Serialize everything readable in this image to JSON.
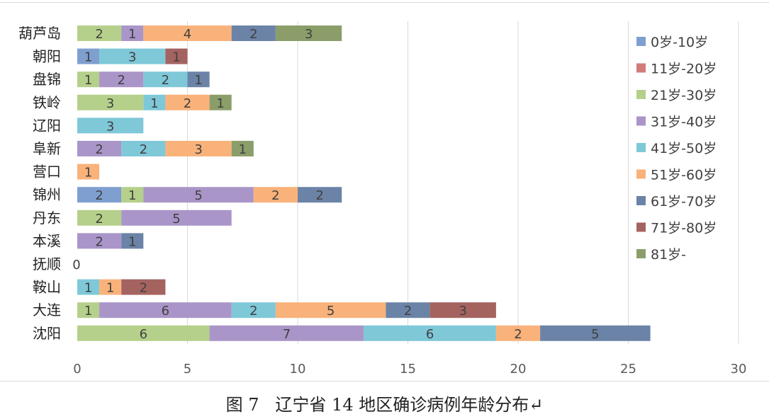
{
  "caption": "图 7   辽宁省 14 地区确诊病例年龄分布↵",
  "chart_data": {
    "type": "bar",
    "orientation": "horizontal",
    "stacked": true,
    "categories": [
      "葫芦岛",
      "朝阳",
      "盘锦",
      "铁岭",
      "辽阳",
      "阜新",
      "营口",
      "锦州",
      "丹东",
      "本溪",
      "抚顺",
      "鞍山",
      "大连",
      "沈阳"
    ],
    "zero_label_categories": [
      "抚顺"
    ],
    "zero_label_text": "0",
    "series": [
      {
        "name": "0岁-10岁",
        "color": "#7f9fd0",
        "values": [
          0,
          1,
          0,
          0,
          0,
          0,
          0,
          2,
          0,
          0,
          0,
          0,
          0,
          0
        ]
      },
      {
        "name": "11岁-20岁",
        "color": "#d27b78",
        "values": [
          0,
          0,
          0,
          0,
          0,
          0,
          0,
          0,
          0,
          0,
          0,
          0,
          0,
          0
        ]
      },
      {
        "name": "21岁-30岁",
        "color": "#b5d08a",
        "values": [
          2,
          0,
          1,
          3,
          0,
          0,
          0,
          1,
          2,
          0,
          0,
          0,
          1,
          6
        ]
      },
      {
        "name": "31岁-40岁",
        "color": "#a995c8",
        "values": [
          1,
          0,
          2,
          0,
          0,
          2,
          0,
          5,
          5,
          2,
          0,
          0,
          6,
          7
        ]
      },
      {
        "name": "41岁-50岁",
        "color": "#7ec8d8",
        "values": [
          0,
          3,
          2,
          1,
          3,
          2,
          0,
          0,
          0,
          0,
          0,
          1,
          2,
          6
        ]
      },
      {
        "name": "51岁-60岁",
        "color": "#f9b27a",
        "values": [
          4,
          0,
          0,
          2,
          0,
          3,
          1,
          2,
          0,
          0,
          0,
          1,
          5,
          2
        ]
      },
      {
        "name": "61岁-70岁",
        "color": "#6b83a6",
        "values": [
          2,
          0,
          1,
          0,
          0,
          0,
          0,
          2,
          0,
          1,
          0,
          0,
          2,
          5
        ]
      },
      {
        "name": "71岁-80岁",
        "color": "#a5635f",
        "values": [
          0,
          1,
          0,
          0,
          0,
          0,
          0,
          0,
          0,
          0,
          0,
          2,
          3,
          0
        ]
      },
      {
        "name": "81岁-",
        "color": "#8b9e6a",
        "values": [
          3,
          0,
          0,
          1,
          0,
          1,
          0,
          0,
          0,
          0,
          0,
          0,
          0,
          0
        ]
      }
    ],
    "xlim": [
      0,
      30
    ],
    "xticks": [
      0,
      5,
      10,
      15,
      20,
      25,
      30
    ],
    "grid": true,
    "legend_position": "right",
    "title": "",
    "xlabel": "",
    "ylabel": ""
  }
}
